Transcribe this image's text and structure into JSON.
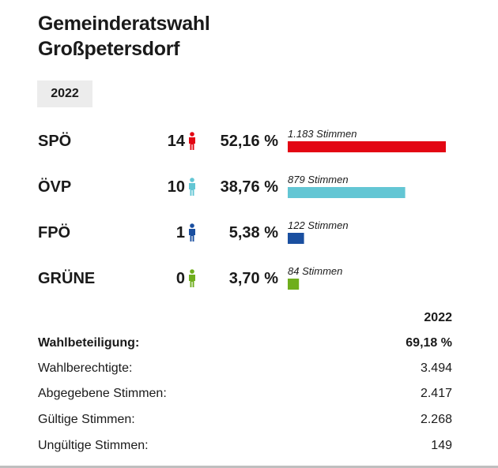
{
  "title_line1": "Gemeinderatswahl",
  "title_line2": "Großpetersdorf",
  "year_tab": "2022",
  "chart_data": {
    "type": "bar",
    "categories": [
      "SPÖ",
      "ÖVP",
      "FPÖ",
      "GRÜNE"
    ],
    "seats": [
      14,
      10,
      1,
      0
    ],
    "percent_labels": [
      "52,16 %",
      "38,76 %",
      "5,38 %",
      "3,70 %"
    ],
    "vote_labels": [
      "1.183 Stimmen",
      "879 Stimmen",
      "122 Stimmen",
      "84 Stimmen"
    ],
    "values": [
      1183,
      879,
      122,
      84
    ],
    "colors": [
      "#e30613",
      "#63c6d4",
      "#1a4fa0",
      "#6fae1d"
    ]
  },
  "stats": {
    "year": "2022",
    "rows": [
      {
        "label": "Wahlbeteiligung:",
        "value": "69,18 %",
        "bold": true
      },
      {
        "label": "Wahlberechtigte:",
        "value": "3.494",
        "bold": false
      },
      {
        "label": "Abgegebene Stimmen:",
        "value": "2.417",
        "bold": false
      },
      {
        "label": "Gültige Stimmen:",
        "value": "2.268",
        "bold": false
      },
      {
        "label": "Ungültige Stimmen:",
        "value": "149",
        "bold": false
      }
    ]
  }
}
